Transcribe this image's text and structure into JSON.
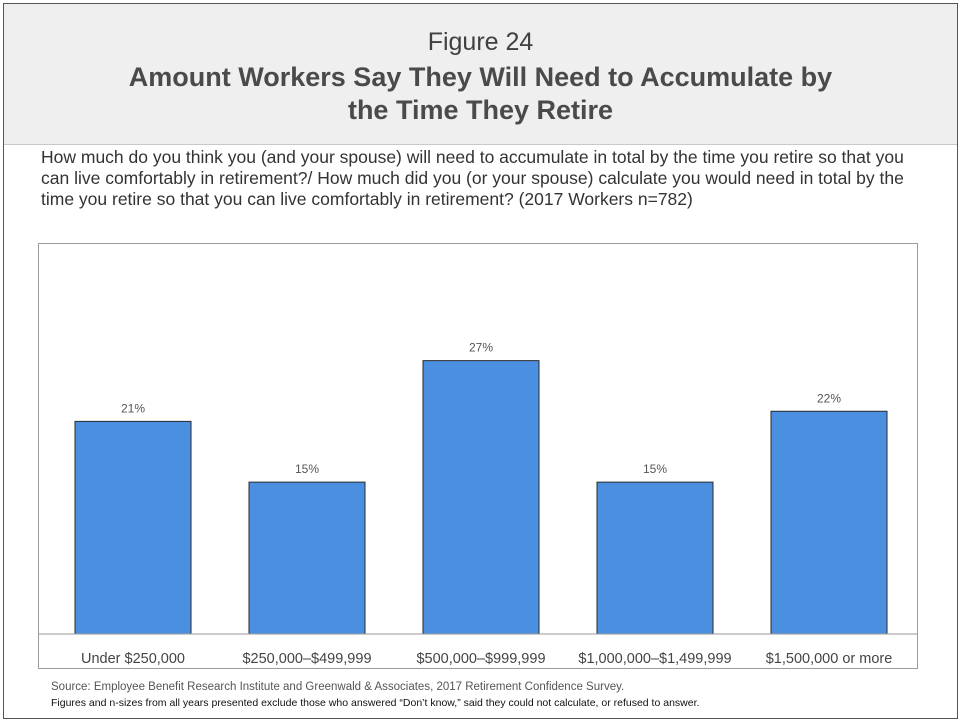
{
  "figure_label": "Figure 24",
  "figure_title": "Amount Workers Say They Will Need to Accumulate by the Time They Retire",
  "question": "How much do you think you (and your spouse) will need to accumulate in total by the time you retire so that you can live comfortably in retirement?/ How much did you (or your spouse) calculate you would need in total by the time you retire so that you can live comfortably in retirement? (2017 Workers n=782)",
  "source": "Source:  Employee Benefit Research Institute and Greenwald & Associates, 2017 Retirement Confidence Survey.",
  "note": "Figures and n-sizes from all years presented exclude those who answered “Don’t know,” said they could not calculate, or refused to answer.",
  "colors": {
    "bar": "#4a8fe0",
    "bar_outline": "#2a2a2a"
  },
  "chart_data": {
    "type": "bar",
    "title": "",
    "xlabel": "",
    "ylabel": "",
    "categories": [
      "Under $250,000",
      "$250,000–$499,999",
      "$500,000–$999,999",
      "$1,000,000–$1,499,999",
      "$1,500,000 or more"
    ],
    "values": [
      21,
      15,
      27,
      15,
      22
    ],
    "value_labels": [
      "21%",
      "15%",
      "27%",
      "15%",
      "22%"
    ],
    "ylim": [
      0,
      32
    ],
    "grid": false,
    "legend": "none"
  }
}
